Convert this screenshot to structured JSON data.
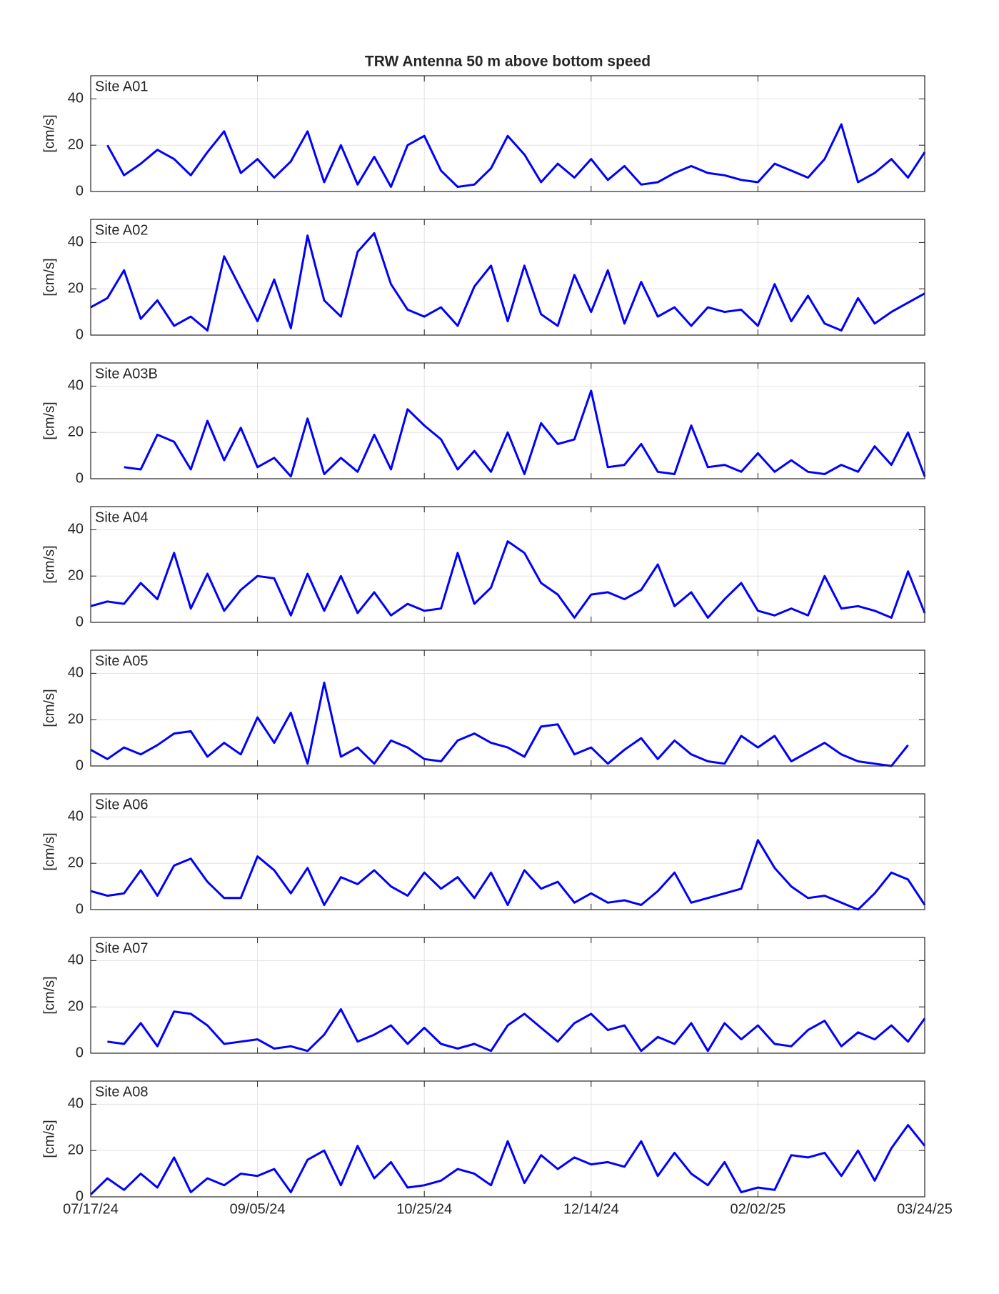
{
  "chart_data": {
    "type": "line",
    "title": "TRW Antenna 50 m above bottom speed",
    "ylabel": "[cm/s]",
    "x": [
      "07/17/24",
      "07/22/24",
      "07/27/24",
      "08/01/24",
      "08/06/24",
      "08/11/24",
      "08/16/24",
      "08/21/24",
      "08/26/24",
      "08/31/24",
      "09/05/24",
      "09/10/24",
      "09/15/24",
      "09/20/24",
      "09/25/24",
      "09/30/24",
      "10/05/24",
      "10/10/24",
      "10/15/24",
      "10/20/24",
      "10/25/24",
      "10/30/24",
      "11/04/24",
      "11/09/24",
      "11/14/24",
      "11/19/24",
      "11/24/24",
      "11/29/24",
      "12/04/24",
      "12/09/24",
      "12/14/24",
      "12/19/24",
      "12/24/24",
      "12/29/24",
      "01/03/25",
      "01/08/25",
      "01/13/25",
      "01/18/25",
      "01/23/25",
      "01/28/25",
      "02/02/25",
      "02/07/25",
      "02/12/25",
      "02/17/25",
      "02/22/25",
      "02/27/25",
      "03/04/25",
      "03/09/25",
      "03/14/25",
      "03/19/25",
      "03/24/25"
    ],
    "xlim": [
      "07/17/24",
      "03/24/25"
    ],
    "xticks": [
      "07/17/24",
      "09/05/24",
      "10/25/24",
      "12/14/24",
      "02/02/25",
      "03/24/25"
    ],
    "ylim": [
      0,
      50
    ],
    "yticks": [
      0,
      20,
      40
    ],
    "grid": true,
    "series": [
      {
        "name": "Site A01",
        "color": "#0000ff",
        "values": [
          null,
          20,
          7,
          12,
          18,
          14,
          7,
          17,
          26,
          8,
          14,
          6,
          13,
          26,
          4,
          20,
          3,
          15,
          2,
          20,
          24,
          9,
          2,
          3,
          10,
          24,
          16,
          4,
          12,
          6,
          14,
          5,
          11,
          3,
          4,
          8,
          11,
          8,
          7,
          5,
          4,
          12,
          9,
          6,
          14,
          29,
          4,
          8,
          14,
          6,
          17
        ]
      },
      {
        "name": "Site A02",
        "color": "#0000ff",
        "values": [
          12,
          16,
          28,
          7,
          15,
          4,
          8,
          2,
          34,
          20,
          6,
          24,
          3,
          43,
          15,
          8,
          36,
          44,
          22,
          11,
          8,
          12,
          4,
          21,
          30,
          6,
          30,
          9,
          4,
          26,
          10,
          28,
          5,
          23,
          8,
          12,
          4,
          12,
          10,
          11,
          4,
          22,
          6,
          17,
          5,
          2,
          16,
          5,
          10,
          14,
          18
        ]
      },
      {
        "name": "Site A03B",
        "color": "#0000ff",
        "values": [
          null,
          null,
          5,
          4,
          19,
          16,
          4,
          25,
          8,
          22,
          5,
          9,
          1,
          26,
          2,
          9,
          3,
          19,
          4,
          30,
          23,
          17,
          4,
          12,
          3,
          20,
          2,
          24,
          15,
          17,
          38,
          5,
          6,
          15,
          3,
          2,
          23,
          5,
          6,
          3,
          11,
          3,
          8,
          3,
          2,
          6,
          3,
          14,
          6,
          20,
          1
        ]
      },
      {
        "name": "Site A04",
        "color": "#0000ff",
        "values": [
          7,
          9,
          8,
          17,
          10,
          30,
          6,
          21,
          5,
          14,
          20,
          19,
          3,
          21,
          5,
          20,
          4,
          13,
          3,
          8,
          5,
          6,
          30,
          8,
          15,
          35,
          30,
          17,
          12,
          2,
          12,
          13,
          10,
          14,
          25,
          7,
          13,
          2,
          10,
          17,
          5,
          3,
          6,
          3,
          20,
          6,
          7,
          5,
          2,
          22,
          4
        ]
      },
      {
        "name": "Site A05",
        "color": "#0000ff",
        "values": [
          7,
          3,
          8,
          5,
          9,
          14,
          15,
          4,
          10,
          5,
          21,
          10,
          23,
          1,
          36,
          4,
          8,
          1,
          11,
          8,
          3,
          2,
          11,
          14,
          10,
          8,
          4,
          17,
          18,
          5,
          8,
          1,
          7,
          12,
          3,
          11,
          5,
          2,
          1,
          13,
          8,
          13,
          2,
          6,
          10,
          5,
          2,
          1,
          0,
          9,
          null
        ]
      },
      {
        "name": "Site A06",
        "color": "#0000ff",
        "values": [
          8,
          6,
          7,
          17,
          6,
          19,
          22,
          12,
          5,
          5,
          23,
          17,
          7,
          18,
          2,
          14,
          11,
          17,
          10,
          6,
          16,
          9,
          14,
          5,
          16,
          2,
          17,
          9,
          12,
          3,
          7,
          3,
          4,
          2,
          8,
          16,
          3,
          5,
          7,
          9,
          30,
          18,
          10,
          5,
          6,
          3,
          0,
          7,
          16,
          13,
          2
        ]
      },
      {
        "name": "Site A07",
        "color": "#0000ff",
        "values": [
          null,
          5,
          4,
          13,
          3,
          18,
          17,
          12,
          4,
          5,
          6,
          2,
          3,
          1,
          8,
          19,
          5,
          8,
          12,
          4,
          11,
          4,
          2,
          4,
          1,
          12,
          17,
          11,
          5,
          13,
          17,
          10,
          12,
          1,
          7,
          4,
          13,
          1,
          13,
          6,
          12,
          4,
          3,
          10,
          14,
          3,
          9,
          6,
          12,
          5,
          15
        ]
      },
      {
        "name": "Site A08",
        "color": "#0000ff",
        "values": [
          1,
          8,
          3,
          10,
          4,
          17,
          2,
          8,
          5,
          10,
          9,
          12,
          2,
          16,
          20,
          5,
          22,
          8,
          15,
          4,
          5,
          7,
          12,
          10,
          5,
          24,
          6,
          18,
          12,
          17,
          14,
          15,
          13,
          24,
          9,
          19,
          10,
          5,
          15,
          2,
          4,
          3,
          18,
          17,
          19,
          9,
          20,
          7,
          21,
          31,
          22
        ]
      }
    ]
  }
}
